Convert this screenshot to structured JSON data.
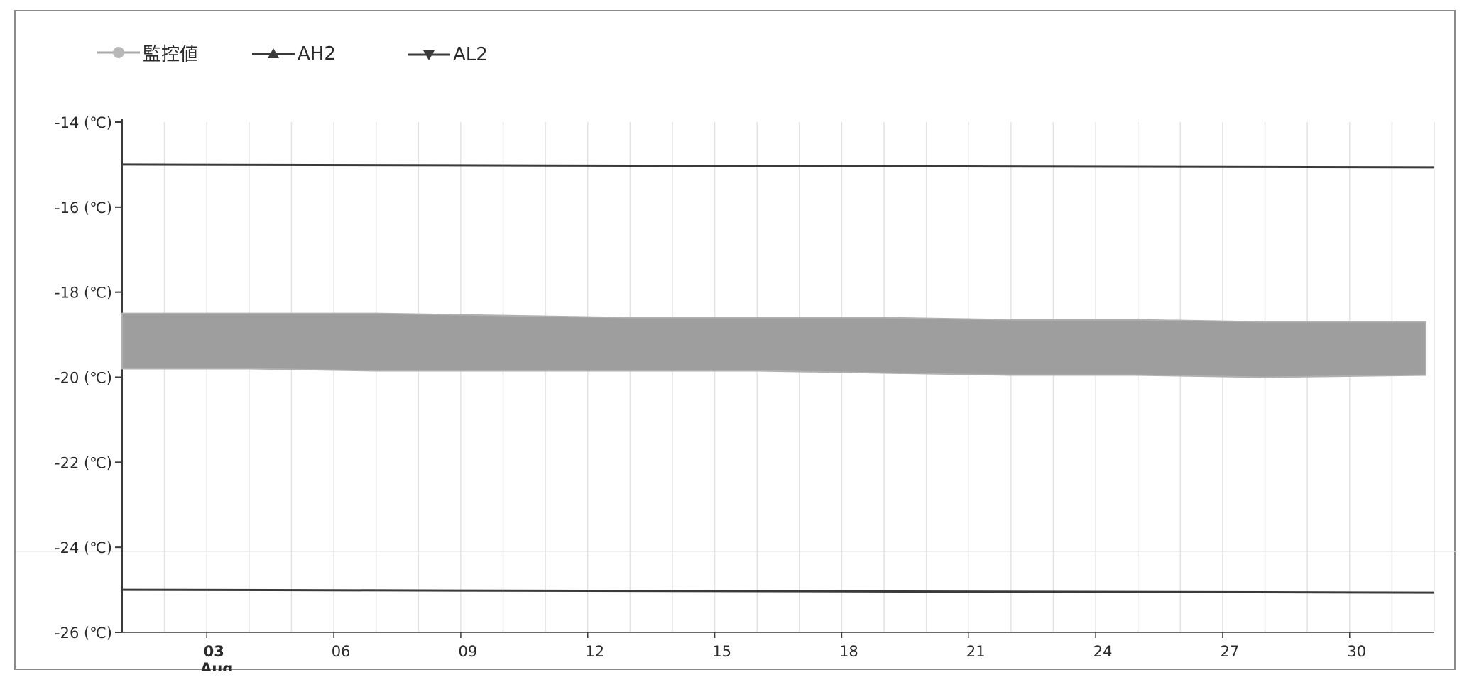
{
  "chart_data": {
    "type": "line",
    "legend_position": "top-left",
    "grid": true,
    "y_unit_label": "(℃)",
    "ylim": [
      -26,
      -14
    ],
    "y_ticks": [
      -14,
      -16,
      -18,
      -20,
      -22,
      -24,
      -26
    ],
    "x_range_day": [
      1,
      32
    ],
    "x_ticks": [
      {
        "day": 3,
        "label": "03",
        "sublabel": "Aug"
      },
      {
        "day": 6,
        "label": "06"
      },
      {
        "day": 9,
        "label": "09"
      },
      {
        "day": 12,
        "label": "12"
      },
      {
        "day": 15,
        "label": "15"
      },
      {
        "day": 18,
        "label": "18"
      },
      {
        "day": 21,
        "label": "21"
      },
      {
        "day": 24,
        "label": "24"
      },
      {
        "day": 27,
        "label": "27"
      },
      {
        "day": 30,
        "label": "30"
      }
    ],
    "series": [
      {
        "name": "監控値",
        "kind": "band",
        "color": "#9e9e9e",
        "x": [
          1,
          4,
          7,
          10,
          13,
          16,
          19,
          22,
          25,
          28,
          31.8
        ],
        "upper": [
          -18.5,
          -18.5,
          -18.5,
          -18.55,
          -18.6,
          -18.6,
          -18.6,
          -18.65,
          -18.65,
          -18.7,
          -18.7
        ],
        "lower": [
          -19.8,
          -19.8,
          -19.85,
          -19.85,
          -19.85,
          -19.85,
          -19.9,
          -19.95,
          -19.95,
          -20.0,
          -19.95
        ]
      },
      {
        "name": "AH2",
        "kind": "line",
        "color": "#3a3a3a",
        "x": [
          1,
          32
        ],
        "y": [
          -15,
          -15
        ]
      },
      {
        "name": "AL2",
        "kind": "line",
        "color": "#3a3a3a",
        "x": [
          1,
          32
        ],
        "y": [
          -25,
          -25
        ]
      }
    ]
  }
}
